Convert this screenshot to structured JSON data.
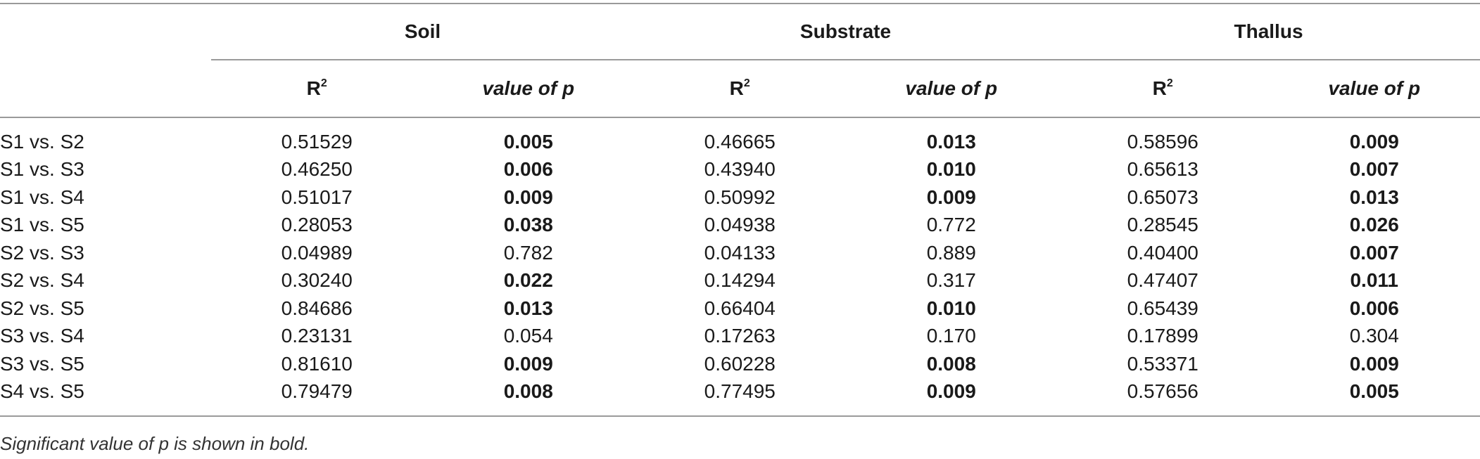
{
  "table": {
    "groups": [
      "Soil",
      "Substrate",
      "Thallus"
    ],
    "r2_label": "R",
    "r2_sup": "2",
    "p_label": "value of p",
    "rows": [
      {
        "label": "S1 vs. S2",
        "cells": [
          {
            "v": "0.51529",
            "b": false
          },
          {
            "v": "0.005",
            "b": true
          },
          {
            "v": "0.46665",
            "b": false
          },
          {
            "v": "0.013",
            "b": true
          },
          {
            "v": "0.58596",
            "b": false
          },
          {
            "v": "0.009",
            "b": true
          }
        ]
      },
      {
        "label": "S1 vs. S3",
        "cells": [
          {
            "v": "0.46250",
            "b": false
          },
          {
            "v": "0.006",
            "b": true
          },
          {
            "v": "0.43940",
            "b": false
          },
          {
            "v": "0.010",
            "b": true
          },
          {
            "v": "0.65613",
            "b": false
          },
          {
            "v": "0.007",
            "b": true
          }
        ]
      },
      {
        "label": "S1 vs. S4",
        "cells": [
          {
            "v": "0.51017",
            "b": false
          },
          {
            "v": "0.009",
            "b": true
          },
          {
            "v": "0.50992",
            "b": false
          },
          {
            "v": "0.009",
            "b": true
          },
          {
            "v": "0.65073",
            "b": false
          },
          {
            "v": "0.013",
            "b": true
          }
        ]
      },
      {
        "label": "S1 vs. S5",
        "cells": [
          {
            "v": "0.28053",
            "b": false
          },
          {
            "v": "0.038",
            "b": true
          },
          {
            "v": "0.04938",
            "b": false
          },
          {
            "v": "0.772",
            "b": false
          },
          {
            "v": "0.28545",
            "b": false
          },
          {
            "v": "0.026",
            "b": true
          }
        ]
      },
      {
        "label": "S2 vs. S3",
        "cells": [
          {
            "v": "0.04989",
            "b": false
          },
          {
            "v": "0.782",
            "b": false
          },
          {
            "v": "0.04133",
            "b": false
          },
          {
            "v": "0.889",
            "b": false
          },
          {
            "v": "0.40400",
            "b": false
          },
          {
            "v": "0.007",
            "b": true
          }
        ]
      },
      {
        "label": "S2 vs. S4",
        "cells": [
          {
            "v": "0.30240",
            "b": false
          },
          {
            "v": "0.022",
            "b": true
          },
          {
            "v": "0.14294",
            "b": false
          },
          {
            "v": "0.317",
            "b": false
          },
          {
            "v": "0.47407",
            "b": false
          },
          {
            "v": "0.011",
            "b": true
          }
        ]
      },
      {
        "label": "S2 vs. S5",
        "cells": [
          {
            "v": "0.84686",
            "b": false
          },
          {
            "v": "0.013",
            "b": true
          },
          {
            "v": "0.66404",
            "b": false
          },
          {
            "v": "0.010",
            "b": true
          },
          {
            "v": "0.65439",
            "b": false
          },
          {
            "v": "0.006",
            "b": true
          }
        ]
      },
      {
        "label": "S3 vs. S4",
        "cells": [
          {
            "v": "0.23131",
            "b": false
          },
          {
            "v": "0.054",
            "b": false
          },
          {
            "v": "0.17263",
            "b": false
          },
          {
            "v": "0.170",
            "b": false
          },
          {
            "v": "0.17899",
            "b": false
          },
          {
            "v": "0.304",
            "b": false
          }
        ]
      },
      {
        "label": "S3 vs. S5",
        "cells": [
          {
            "v": "0.81610",
            "b": false
          },
          {
            "v": "0.009",
            "b": true
          },
          {
            "v": "0.60228",
            "b": false
          },
          {
            "v": "0.008",
            "b": true
          },
          {
            "v": "0.53371",
            "b": false
          },
          {
            "v": "0.009",
            "b": true
          }
        ]
      },
      {
        "label": "S4 vs. S5",
        "cells": [
          {
            "v": "0.79479",
            "b": false
          },
          {
            "v": "0.008",
            "b": true
          },
          {
            "v": "0.77495",
            "b": false
          },
          {
            "v": "0.009",
            "b": true
          },
          {
            "v": "0.57656",
            "b": false
          },
          {
            "v": "0.005",
            "b": true
          }
        ]
      }
    ]
  },
  "footnote": "Significant value of p is shown in bold.",
  "colors": {
    "text": "#1a1a1a",
    "rule": "#9a9a9a"
  }
}
